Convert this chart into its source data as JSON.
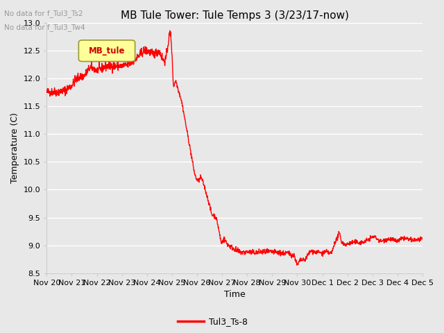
{
  "title": "MB Tule Tower: Tule Temps 3 (3/23/17-now)",
  "xlabel": "Time",
  "ylabel": "Temperature (C)",
  "ylim": [
    8.5,
    13.0
  ],
  "yticks": [
    8.5,
    9.0,
    9.5,
    10.0,
    10.5,
    11.0,
    11.5,
    12.0,
    12.5,
    13.0
  ],
  "line_color": "#ff0000",
  "line_width": 1.0,
  "legend_label": "Tul3_Ts-8",
  "legend_box_label": "MB_tule",
  "legend_box_color": "#ffff99",
  "legend_box_border": "#999933",
  "no_data_text1": "No data for f_Tul3_Ts2",
  "no_data_text2": "No data for f_Tul3_Tw4",
  "bg_color": "#e8e8e8",
  "grid_color": "#ffffff",
  "xtick_labels": [
    "Nov 20",
    "Nov 21",
    "Nov 22",
    "Nov 23",
    "Nov 24",
    "Nov 25",
    "Nov 26",
    "Nov 27",
    "Nov 28",
    "Nov 29",
    "Nov 30",
    "Dec 1",
    "Dec 2",
    "Dec 3",
    "Dec 4",
    "Dec 5"
  ],
  "title_fontsize": 11,
  "axis_label_fontsize": 9,
  "tick_fontsize": 8
}
